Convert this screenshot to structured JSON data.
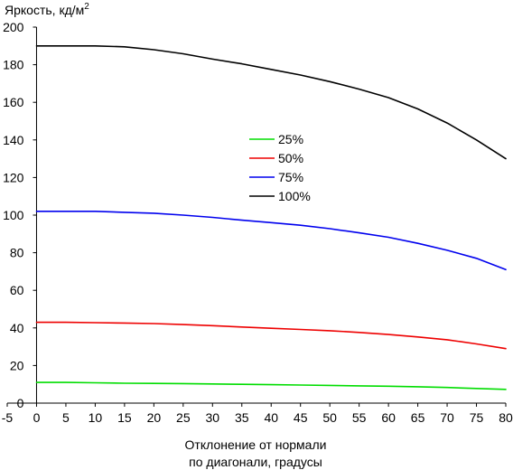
{
  "chart_data": {
    "type": "line",
    "title": "",
    "ylabel": "Яркость, кд/м",
    "ylabel_superscript": "2",
    "xlabel_lines": [
      "Отклонение от нормали",
      "по диагонали, градусы"
    ],
    "xlim": [
      -5,
      80
    ],
    "ylim": [
      0,
      200
    ],
    "x_ticks": [
      -5,
      0,
      5,
      10,
      15,
      20,
      25,
      30,
      35,
      40,
      45,
      50,
      55,
      60,
      65,
      70,
      75,
      80
    ],
    "y_ticks": [
      0,
      20,
      40,
      60,
      80,
      100,
      120,
      140,
      160,
      180,
      200
    ],
    "grid": false,
    "legend_position": "center",
    "x": [
      0,
      5,
      10,
      15,
      20,
      25,
      30,
      35,
      40,
      45,
      50,
      55,
      60,
      65,
      70,
      75,
      80
    ],
    "series": [
      {
        "name": "25%",
        "color": "#00dd00",
        "values": [
          11,
          11,
          10.8,
          10.6,
          10.5,
          10.4,
          10.2,
          10.0,
          9.8,
          9.6,
          9.4,
          9.2,
          9.0,
          8.7,
          8.3,
          7.8,
          7.3
        ]
      },
      {
        "name": "50%",
        "color": "#ee0000",
        "values": [
          43,
          43,
          42.8,
          42.6,
          42.3,
          41.8,
          41.2,
          40.5,
          39.8,
          39.2,
          38.5,
          37.6,
          36.5,
          35.2,
          33.7,
          31.5,
          29.0
        ]
      },
      {
        "name": "75%",
        "color": "#0000ee",
        "values": [
          102,
          102,
          102,
          101.5,
          101,
          100,
          98.8,
          97.3,
          96,
          94.6,
          92.8,
          90.6,
          88.2,
          85,
          81.3,
          77,
          71
        ]
      },
      {
        "name": "100%",
        "color": "#000000",
        "values": [
          190,
          190,
          190,
          189.5,
          188,
          185.8,
          183,
          180.5,
          177.5,
          174.5,
          171,
          167,
          162.5,
          156.5,
          149,
          140,
          130
        ]
      }
    ]
  }
}
